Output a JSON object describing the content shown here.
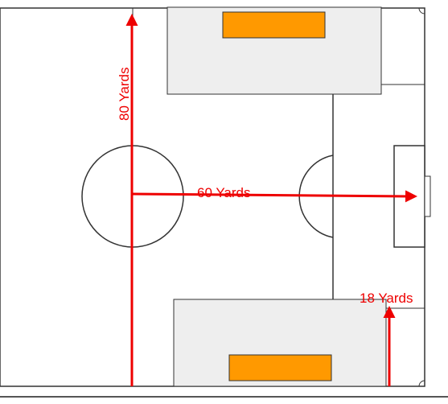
{
  "diagram": {
    "labels": {
      "width": "80 Yards",
      "length": "60 Yards",
      "offset": "18 Yards"
    },
    "colors": {
      "background": "#ffffff",
      "line": "#333333",
      "zone_fill": "#eeeeee",
      "goal_fill": "#ff9900",
      "arrow": "#ee0000"
    }
  }
}
